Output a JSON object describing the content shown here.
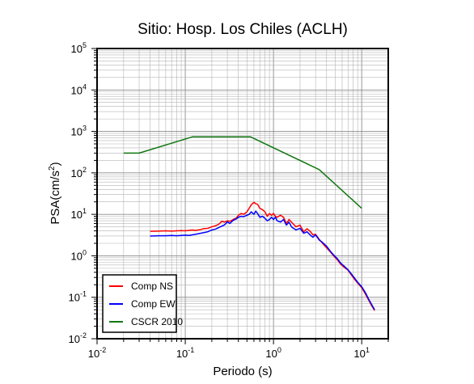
{
  "chart_data": {
    "type": "line",
    "title": "Sitio: Hosp. Los Chiles (ACLH)",
    "xlabel": "Periodo (s)",
    "ylabel_base": "PSA(cm/s",
    "ylabel_sup": "2",
    "ylabel_close": ")",
    "xscale": "log",
    "yscale": "log",
    "xlim": [
      0.01,
      20
    ],
    "ylim": [
      0.01,
      100000
    ],
    "grid": true,
    "legend_position": "bottom-left",
    "x_ticks": [
      {
        "base": "10",
        "exp": "-2",
        "value": 0.01
      },
      {
        "base": "10",
        "exp": "-1",
        "value": 0.1
      },
      {
        "base": "10",
        "exp": "0",
        "value": 1
      },
      {
        "base": "10",
        "exp": "1",
        "value": 10
      }
    ],
    "y_ticks": [
      {
        "base": "10",
        "exp": "-2",
        "value": 0.01
      },
      {
        "base": "10",
        "exp": "-1",
        "value": 0.1
      },
      {
        "base": "10",
        "exp": "0",
        "value": 1
      },
      {
        "base": "10",
        "exp": "1",
        "value": 10
      },
      {
        "base": "10",
        "exp": "2",
        "value": 100
      },
      {
        "base": "10",
        "exp": "3",
        "value": 1000
      },
      {
        "base": "10",
        "exp": "4",
        "value": 10000
      },
      {
        "base": "10",
        "exp": "5",
        "value": 100000
      }
    ],
    "series": [
      {
        "name": "Comp NS",
        "color": "#ff0000",
        "x": [
          0.04,
          0.05,
          0.06,
          0.07,
          0.08,
          0.09,
          0.1,
          0.11,
          0.12,
          0.13,
          0.14,
          0.15,
          0.16,
          0.18,
          0.2,
          0.22,
          0.24,
          0.26,
          0.28,
          0.3,
          0.32,
          0.35,
          0.38,
          0.4,
          0.43,
          0.46,
          0.5,
          0.53,
          0.56,
          0.6,
          0.63,
          0.66,
          0.7,
          0.75,
          0.8,
          0.85,
          0.9,
          0.95,
          1.0,
          1.05,
          1.1,
          1.2,
          1.3,
          1.4,
          1.5,
          1.6,
          1.8,
          2.0,
          2.2,
          2.4,
          2.6,
          2.8,
          3.0,
          3.3,
          3.6,
          4.0,
          4.4,
          4.8,
          5.3,
          5.8,
          6.4,
          7.0,
          7.6,
          8.2,
          9.0,
          10.0,
          11.0,
          12.0,
          13.0,
          14.0
        ],
        "y": [
          3.9,
          3.95,
          4.0,
          3.95,
          4.0,
          4.05,
          4.0,
          4.1,
          4.2,
          4.1,
          4.2,
          4.3,
          4.5,
          4.6,
          5.0,
          5.3,
          5.8,
          6.8,
          6.5,
          7.0,
          6.8,
          7.5,
          8.2,
          9.5,
          10.5,
          10.0,
          11.5,
          14.0,
          17.0,
          19.5,
          18.0,
          17.5,
          14.0,
          13.0,
          11.5,
          9.0,
          10.5,
          9.5,
          10.5,
          9.0,
          8.5,
          9.5,
          8.5,
          6.0,
          7.5,
          6.5,
          5.0,
          5.5,
          3.8,
          4.5,
          3.9,
          3.2,
          3.3,
          2.5,
          2.0,
          1.55,
          1.25,
          1.0,
          0.8,
          0.62,
          0.52,
          0.45,
          0.35,
          0.28,
          0.22,
          0.17,
          0.12,
          0.085,
          0.062,
          0.048
        ]
      },
      {
        "name": "Comp EW",
        "color": "#0000ff",
        "x": [
          0.04,
          0.05,
          0.06,
          0.07,
          0.08,
          0.09,
          0.1,
          0.11,
          0.12,
          0.13,
          0.14,
          0.15,
          0.16,
          0.18,
          0.2,
          0.22,
          0.24,
          0.26,
          0.28,
          0.3,
          0.32,
          0.35,
          0.38,
          0.4,
          0.43,
          0.46,
          0.5,
          0.53,
          0.56,
          0.6,
          0.63,
          0.66,
          0.7,
          0.75,
          0.8,
          0.85,
          0.9,
          0.95,
          1.0,
          1.05,
          1.1,
          1.2,
          1.3,
          1.4,
          1.5,
          1.6,
          1.8,
          2.0,
          2.2,
          2.4,
          2.6,
          2.8,
          3.0,
          3.3,
          3.6,
          4.0,
          4.4,
          4.8,
          5.3,
          5.8,
          6.4,
          7.0,
          7.6,
          8.2,
          9.0,
          10.0,
          11.0,
          12.0,
          13.0,
          14.0
        ],
        "y": [
          3.0,
          3.05,
          3.05,
          3.1,
          3.05,
          3.1,
          3.15,
          3.1,
          3.2,
          3.3,
          3.4,
          3.5,
          3.6,
          3.8,
          4.2,
          4.4,
          4.8,
          5.2,
          5.6,
          6.6,
          6.0,
          7.2,
          7.8,
          8.5,
          9.0,
          8.8,
          9.5,
          10.0,
          11.5,
          10.0,
          12.0,
          10.5,
          8.5,
          9.0,
          8.0,
          7.0,
          7.5,
          8.5,
          7.5,
          8.5,
          7.0,
          6.5,
          7.5,
          5.5,
          6.5,
          5.0,
          4.2,
          4.6,
          3.5,
          3.8,
          3.2,
          2.8,
          3.2,
          2.4,
          2.1,
          1.7,
          1.3,
          1.05,
          0.85,
          0.66,
          0.55,
          0.46,
          0.37,
          0.3,
          0.23,
          0.18,
          0.13,
          0.09,
          0.066,
          0.05
        ]
      },
      {
        "name": "CSCR 2010",
        "color": "#117711",
        "x": [
          0.02,
          0.03,
          0.12,
          0.55,
          3.3,
          10.0
        ],
        "y": [
          300,
          300,
          740,
          740,
          120,
          14
        ]
      }
    ]
  }
}
